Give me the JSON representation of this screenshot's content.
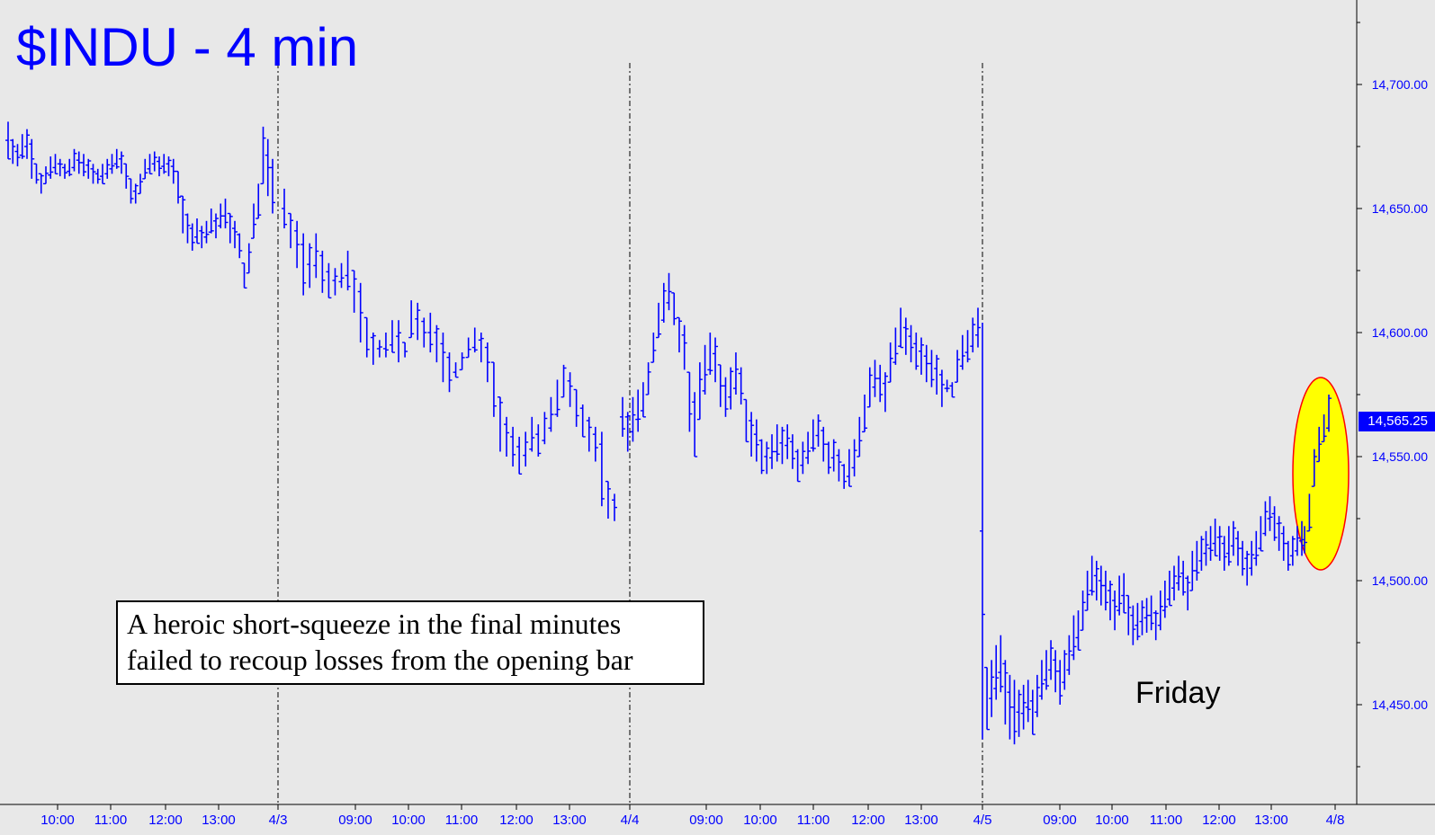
{
  "title": "$INDU - 4 min",
  "annotation": {
    "line1": "A heroic short-squeeze in the final minutes",
    "line2": "failed to recoup losses from the opening bar"
  },
  "day_label": "Friday",
  "last_price_label": "14,565.25",
  "colors": {
    "background": "#e8e8e8",
    "bars": "#0000ff",
    "highlight_fill": "#ffff00",
    "highlight_stroke": "#ff0000"
  },
  "chart_data": {
    "type": "ohlc_bar",
    "title": "$INDU - 4 min",
    "ylim": [
      14420,
      14735
    ],
    "y_ticks": [
      14450,
      14500,
      14550,
      14600,
      14650,
      14700
    ],
    "y_tick_labels": [
      "14,450.00",
      "14,500.00",
      "14,550.00",
      "14,600.00",
      "14,650.00",
      "14,700.00"
    ],
    "x_tick_labels": [
      "10:00",
      "11:00",
      "12:00",
      "13:00",
      "4/3",
      "09:00",
      "10:00",
      "11:00",
      "12:00",
      "13:00",
      "4/4",
      "09:00",
      "10:00",
      "11:00",
      "12:00",
      "13:00",
      "4/5",
      "09:00",
      "10:00",
      "11:00",
      "12:00",
      "13:00",
      "4/8"
    ],
    "day_separators": [
      "4/3",
      "4/4",
      "4/5"
    ],
    "last_price": 14565.25,
    "highlight": "final minutes short-squeeze",
    "series": [
      {
        "day": "4/2",
        "highs": [
          14685,
          14678,
          14676,
          14680,
          14682,
          14678,
          14668,
          14664,
          14667,
          14671,
          14672,
          14670,
          14668,
          14670,
          14674,
          14673,
          14672,
          14670,
          14668,
          14666,
          14668,
          14670,
          14672,
          14674,
          14673,
          14668,
          14662,
          14660,
          14664,
          14670,
          14672,
          14673,
          14671,
          14672,
          14671,
          14670,
          14665,
          14655,
          14648,
          14644,
          14646,
          14643,
          14645,
          14650,
          14648,
          14652,
          14654,
          14648,
          14645,
          14640,
          14628,
          14636,
          14652,
          14660,
          14683,
          14678,
          14670
        ],
        "lows": [
          14670,
          14668,
          14667,
          14670,
          14670,
          14662,
          14660,
          14656,
          14660,
          14662,
          14664,
          14663,
          14662,
          14663,
          14665,
          14664,
          14663,
          14662,
          14660,
          14660,
          14660,
          14662,
          14664,
          14666,
          14664,
          14658,
          14652,
          14652,
          14656,
          14662,
          14664,
          14665,
          14663,
          14664,
          14663,
          14660,
          14652,
          14640,
          14636,
          14633,
          14636,
          14634,
          14636,
          14640,
          14638,
          14642,
          14642,
          14636,
          14634,
          14630,
          14618,
          14624,
          14638,
          14646,
          14660,
          14655,
          14648
        ]
      },
      {
        "day": "4/3",
        "highs": [
          14658,
          14648,
          14645,
          14640,
          14636,
          14640,
          14633,
          14628,
          14626,
          14628,
          14633,
          14625,
          14620,
          14606,
          14600,
          14597,
          14600,
          14605,
          14605,
          14596,
          14613,
          14612,
          14606,
          14608,
          14603,
          14600,
          14592,
          14588,
          14592,
          14598,
          14602,
          14600,
          14596,
          14588,
          14574,
          14566,
          14562,
          14558,
          14560,
          14566,
          14563,
          14568,
          14574,
          14581,
          14587,
          14584,
          14577,
          14571,
          14566,
          14562,
          14560,
          14540,
          14535
        ],
        "lows": [
          14642,
          14634,
          14626,
          14615,
          14618,
          14622,
          14616,
          14614,
          14615,
          14618,
          14617,
          14608,
          14596,
          14590,
          14587,
          14590,
          14590,
          14592,
          14588,
          14590,
          14598,
          14597,
          14594,
          14592,
          14588,
          14580,
          14576,
          14582,
          14585,
          14590,
          14592,
          14588,
          14580,
          14566,
          14552,
          14550,
          14546,
          14543,
          14546,
          14552,
          14550,
          14555,
          14560,
          14566,
          14574,
          14570,
          14562,
          14558,
          14552,
          14548,
          14530,
          14525,
          14524
        ]
      },
      {
        "day": "4/4",
        "highs": [
          14574,
          14568,
          14574,
          14577,
          14580,
          14588,
          14600,
          14612,
          14620,
          14624,
          14616,
          14606,
          14603,
          14584,
          14576,
          14588,
          14595,
          14600,
          14598,
          14587,
          14582,
          14586,
          14592,
          14586,
          14573,
          14568,
          14565,
          14557,
          14556,
          14559,
          14563,
          14562,
          14563,
          14559,
          14553,
          14556,
          14560,
          14565,
          14567,
          14562,
          14556,
          14557,
          14553,
          14547,
          14553,
          14557,
          14566,
          14575,
          14586,
          14589,
          14587,
          14584,
          14596,
          14602,
          14610,
          14606,
          14603,
          14600,
          14598,
          14595,
          14593,
          14591,
          14585,
          14581,
          14580,
          14593,
          14599,
          14601,
          14606,
          14610
        ],
        "lows": [
          14558,
          14552,
          14556,
          14560,
          14566,
          14575,
          14588,
          14598,
          14604,
          14609,
          14603,
          14592,
          14585,
          14560,
          14550,
          14565,
          14575,
          14583,
          14580,
          14570,
          14566,
          14569,
          14575,
          14571,
          14556,
          14550,
          14548,
          14543,
          14543,
          14545,
          14548,
          14547,
          14549,
          14545,
          14540,
          14543,
          14547,
          14552,
          14554,
          14548,
          14543,
          14544,
          14540,
          14537,
          14538,
          14542,
          14550,
          14560,
          14570,
          14574,
          14572,
          14568,
          14580,
          14587,
          14594,
          14591,
          14588,
          14585,
          14583,
          14580,
          14578,
          14575,
          14570,
          14576,
          14574,
          14580,
          14585,
          14588,
          14592,
          14594
        ]
      },
      {
        "day": "4/5",
        "highs": [
          14604,
          14465,
          14468,
          14474,
          14478,
          14468,
          14462,
          14460,
          14456,
          14458,
          14460,
          14456,
          14462,
          14468,
          14472,
          14476,
          14472,
          14468,
          14472,
          14478,
          14486,
          14488,
          14496,
          14504,
          14510,
          14508,
          14506,
          14504,
          14500,
          14496,
          14502,
          14503,
          14494,
          14490,
          14491,
          14492,
          14493,
          14494,
          14488,
          14496,
          14500,
          14504,
          14506,
          14510,
          14508,
          14502,
          14512,
          14516,
          14518,
          14520,
          14522,
          14525,
          14522,
          14518,
          14522,
          14524,
          14520,
          14516,
          14512,
          14516,
          14520,
          14526,
          14532,
          14534,
          14530,
          14526,
          14522,
          14516,
          14518,
          14522,
          14524
        ],
        "lows": [
          14436,
          14440,
          14445,
          14452,
          14455,
          14442,
          14436,
          14434,
          14437,
          14440,
          14443,
          14438,
          14445,
          14452,
          14456,
          14460,
          14455,
          14450,
          14456,
          14462,
          14468,
          14472,
          14480,
          14488,
          14494,
          14492,
          14490,
          14488,
          14484,
          14480,
          14486,
          14487,
          14478,
          14474,
          14476,
          14478,
          14479,
          14480,
          14476,
          14480,
          14485,
          14490,
          14492,
          14496,
          14494,
          14488,
          14496,
          14500,
          14504,
          14506,
          14508,
          14510,
          14508,
          14504,
          14506,
          14510,
          14506,
          14502,
          14498,
          14502,
          14506,
          14512,
          14518,
          14520,
          14516,
          14512,
          14508,
          14504,
          14506,
          14510,
          14510
        ]
      },
      {
        "day": "4/5 close",
        "highs": [
          14522,
          14535,
          14553,
          14562,
          14567,
          14575
        ],
        "lows": [
          14511,
          14520,
          14538,
          14548,
          14556,
          14560
        ]
      }
    ]
  }
}
